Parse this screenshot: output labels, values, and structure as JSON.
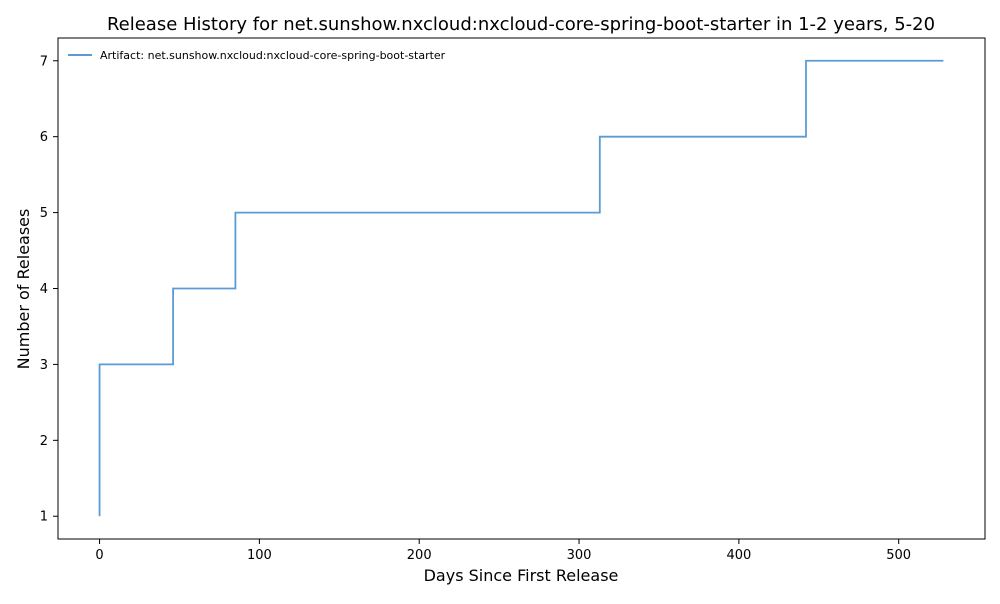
{
  "chart_data": {
    "type": "line",
    "title": "Release History for net.sunshow.nxcloud:nxcloud-core-spring-boot-starter in 1-2 years, 5-20",
    "xlabel": "Days Since First Release",
    "ylabel": "Number of Releases",
    "xlim": [
      -26,
      554
    ],
    "ylim": [
      0.7,
      7.3
    ],
    "xticks": [
      0,
      100,
      200,
      300,
      400,
      500
    ],
    "yticks": [
      1,
      2,
      3,
      4,
      5,
      6,
      7
    ],
    "grid": false,
    "legend_position": "top-left",
    "step": "post",
    "series": [
      {
        "name": "Artifact: net.sunshow.nxcloud:nxcloud-core-spring-boot-starter",
        "color": "#5b9bd5",
        "x": [
          0,
          0,
          0,
          46,
          85,
          313,
          442,
          528
        ],
        "y": [
          1,
          2,
          3,
          4,
          5,
          6,
          7,
          7
        ]
      }
    ]
  }
}
